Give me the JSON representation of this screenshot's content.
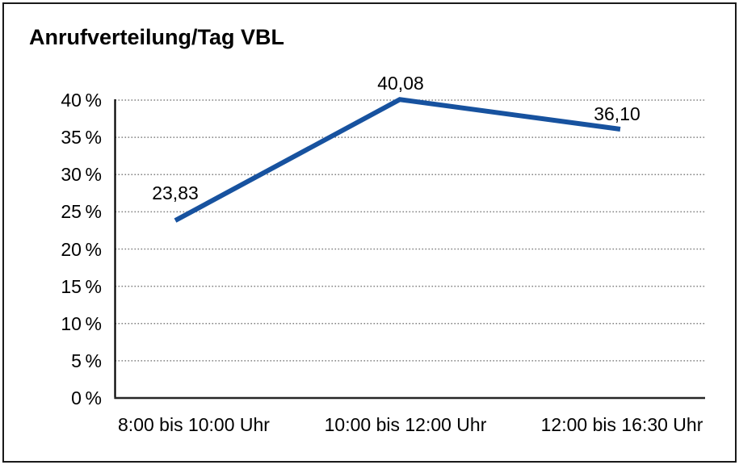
{
  "header": {
    "title": "Anrufverteilung/Tag VBL"
  },
  "colors": {
    "line": "#17529F",
    "grid": "#808080",
    "axis_y": "#000000",
    "axis_x": "#262626",
    "border": "#1a1a1a",
    "background": "#ffffff",
    "text": "#000000"
  },
  "chart_data": {
    "type": "line",
    "title": "Anrufverteilung/Tag VBL",
    "categories": [
      "8:00 bis 10:00 Uhr",
      "10:00 bis 12:00 Uhr",
      "12:00 bis 16:30 Uhr"
    ],
    "values": [
      23.83,
      40.08,
      36.1
    ],
    "value_labels": [
      "23,83",
      "40,08",
      "36,10"
    ],
    "ytick_labels": [
      "40 %",
      "35 %",
      "30 %",
      "25 %",
      "20 %",
      "15 %",
      "10 %",
      "5 %",
      "0 %"
    ],
    "ylim": [
      0,
      40
    ],
    "ytick_step": 5,
    "xlabel": "",
    "ylabel": "",
    "grid": "horizontal-dotted",
    "legend": "none",
    "marker": "none",
    "line_width": 6
  }
}
